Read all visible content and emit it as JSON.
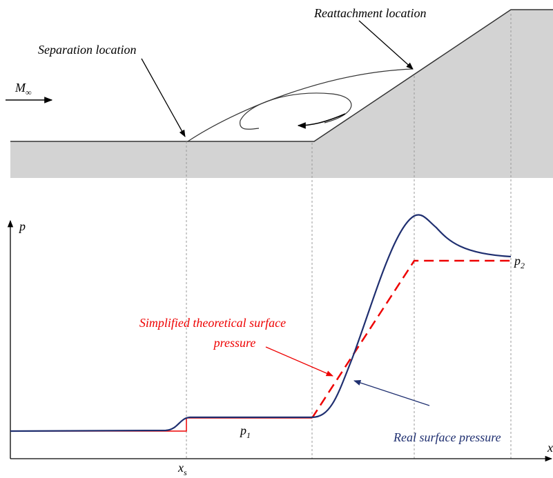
{
  "labels": {
    "reattachment": "Reattachment location",
    "separation": "Separation location",
    "mach": {
      "base": "M",
      "sub": "∞"
    },
    "p_axis": "p",
    "x_axis": "x",
    "p1": {
      "base": "p",
      "sub": "1"
    },
    "p2": {
      "base": "p",
      "sub": "2"
    },
    "xs": {
      "base": "x",
      "sub": "s"
    },
    "simplified": [
      "Simplified theoretical surface",
      "pressure"
    ],
    "real": "Real surface pressure"
  }
}
